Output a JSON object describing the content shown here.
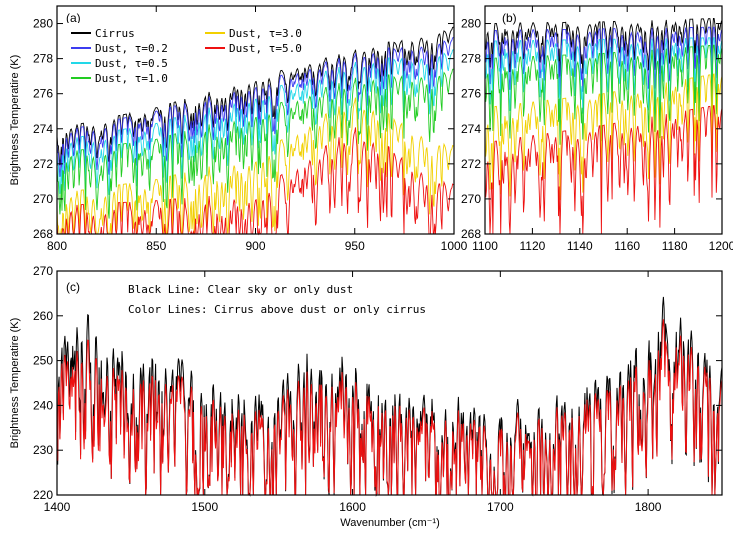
{
  "chart_data": [
    {
      "panel": "a",
      "type": "line",
      "panel_label": "(a)",
      "title": "",
      "xlabel": "",
      "ylabel": "Brightness Temperatire (K)",
      "xlim": [
        800,
        1000
      ],
      "ylim": [
        268,
        281
      ],
      "xticks": [
        800,
        850,
        900,
        950,
        1000
      ],
      "yticks": [
        268,
        270,
        272,
        274,
        276,
        278,
        280
      ],
      "legend_position": "top-left",
      "legend": [
        {
          "label": "Cirrus",
          "color": "#000000"
        },
        {
          "label": "Dust, τ=0.2",
          "color": "#3c3cf0"
        },
        {
          "label": "Dust, τ=0.5",
          "color": "#22d8e8"
        },
        {
          "label": "Dust, τ=1.0",
          "color": "#22cc22"
        },
        {
          "label": "Dust, τ=3.0",
          "color": "#f2d000"
        },
        {
          "label": "Dust, τ=5.0",
          "color": "#ee1111"
        }
      ],
      "series": [
        {
          "name": "Cirrus",
          "color": "#000000",
          "x": [
            800,
            850,
            900,
            950,
            1000
          ],
          "y": [
            274.0,
            275.2,
            276.9,
            278.5,
            279.8
          ]
        },
        {
          "name": "Dust, τ=0.2",
          "color": "#3c3cf0",
          "x": [
            800,
            850,
            900,
            950,
            1000
          ],
          "y": [
            273.8,
            275.0,
            276.6,
            278.3,
            279.2
          ]
        },
        {
          "name": "Dust, τ=0.5",
          "color": "#22d8e8",
          "x": [
            800,
            850,
            900,
            950,
            1000
          ],
          "y": [
            273.3,
            274.3,
            276.0,
            277.8,
            278.5
          ]
        },
        {
          "name": "Dust, τ=1.0",
          "color": "#22cc22",
          "x": [
            800,
            850,
            900,
            950,
            1000
          ],
          "y": [
            272.6,
            273.4,
            275.0,
            276.9,
            277.4
          ]
        },
        {
          "name": "Dust, τ=3.0",
          "color": "#f2d000",
          "x": [
            800,
            850,
            900,
            950,
            1000
          ],
          "y": [
            270.3,
            271.1,
            272.5,
            275.8,
            273.0
          ]
        },
        {
          "name": "Dust, τ=5.0",
          "color": "#ee1111",
          "x": [
            800,
            850,
            900,
            950,
            1000
          ],
          "y": [
            269.6,
            269.9,
            270.4,
            274.1,
            270.8
          ]
        }
      ]
    },
    {
      "panel": "b",
      "type": "line",
      "panel_label": "(b)",
      "title": "",
      "xlabel": "",
      "ylabel": "",
      "xlim": [
        1100,
        1200
      ],
      "ylim": [
        268,
        281
      ],
      "xticks": [
        1100,
        1120,
        1140,
        1160,
        1180,
        1200
      ],
      "yticks": [
        268,
        270,
        272,
        274,
        276,
        278,
        280
      ],
      "series": [
        {
          "name": "Cirrus",
          "color": "#000000",
          "x": [
            1100,
            1150,
            1200
          ],
          "y": [
            280.0,
            280.1,
            280.3
          ]
        },
        {
          "name": "Dust, τ=0.2",
          "color": "#3c3cf0",
          "x": [
            1100,
            1150,
            1200
          ],
          "y": [
            279.6,
            279.7,
            279.8
          ]
        },
        {
          "name": "Dust, τ=0.5",
          "color": "#22d8e8",
          "x": [
            1100,
            1150,
            1200
          ],
          "y": [
            279.0,
            279.1,
            279.2
          ]
        },
        {
          "name": "Dust, τ=1.0",
          "color": "#22cc22",
          "x": [
            1100,
            1150,
            1200
          ],
          "y": [
            278.0,
            278.3,
            278.8
          ]
        },
        {
          "name": "Dust, τ=3.0",
          "color": "#f2d000",
          "x": [
            1100,
            1150,
            1200
          ],
          "y": [
            275.2,
            276.0,
            277.2
          ]
        },
        {
          "name": "Dust, τ=5.0",
          "color": "#ee1111",
          "x": [
            1100,
            1150,
            1200
          ],
          "y": [
            273.2,
            274.2,
            275.4
          ]
        }
      ]
    },
    {
      "panel": "c",
      "type": "line",
      "panel_label": "(c)",
      "title": "",
      "xlabel": "Wavenumber (cm⁻¹)",
      "ylabel": "Brightness Temperatire (K)",
      "xlim": [
        1400,
        1850
      ],
      "ylim": [
        220,
        270
      ],
      "xticks": [
        1400,
        1500,
        1600,
        1700,
        1800
      ],
      "yticks": [
        220,
        230,
        240,
        250,
        260,
        270
      ],
      "annotations": [
        "Black Line: Clear sky or only dust",
        "Color Lines: Cirrus above dust or only cirrus"
      ],
      "series": [
        {
          "name": "Clear sky or only dust",
          "color": "#000000",
          "x": [
            1400,
            1410,
            1440,
            1480,
            1530,
            1590,
            1640,
            1700,
            1750,
            1800,
            1815,
            1850
          ],
          "y": [
            253,
            262,
            257,
            252,
            245,
            255,
            244,
            240,
            246,
            258,
            267,
            250
          ]
        },
        {
          "name": "Cirrus above dust or only cirrus",
          "color": "#ee1111",
          "x": [
            1400,
            1410,
            1440,
            1480,
            1530,
            1590,
            1640,
            1700,
            1750,
            1800,
            1815,
            1850
          ],
          "y": [
            250,
            256,
            252,
            248,
            241,
            251,
            241,
            237,
            243,
            253,
            262,
            247
          ]
        }
      ]
    }
  ]
}
